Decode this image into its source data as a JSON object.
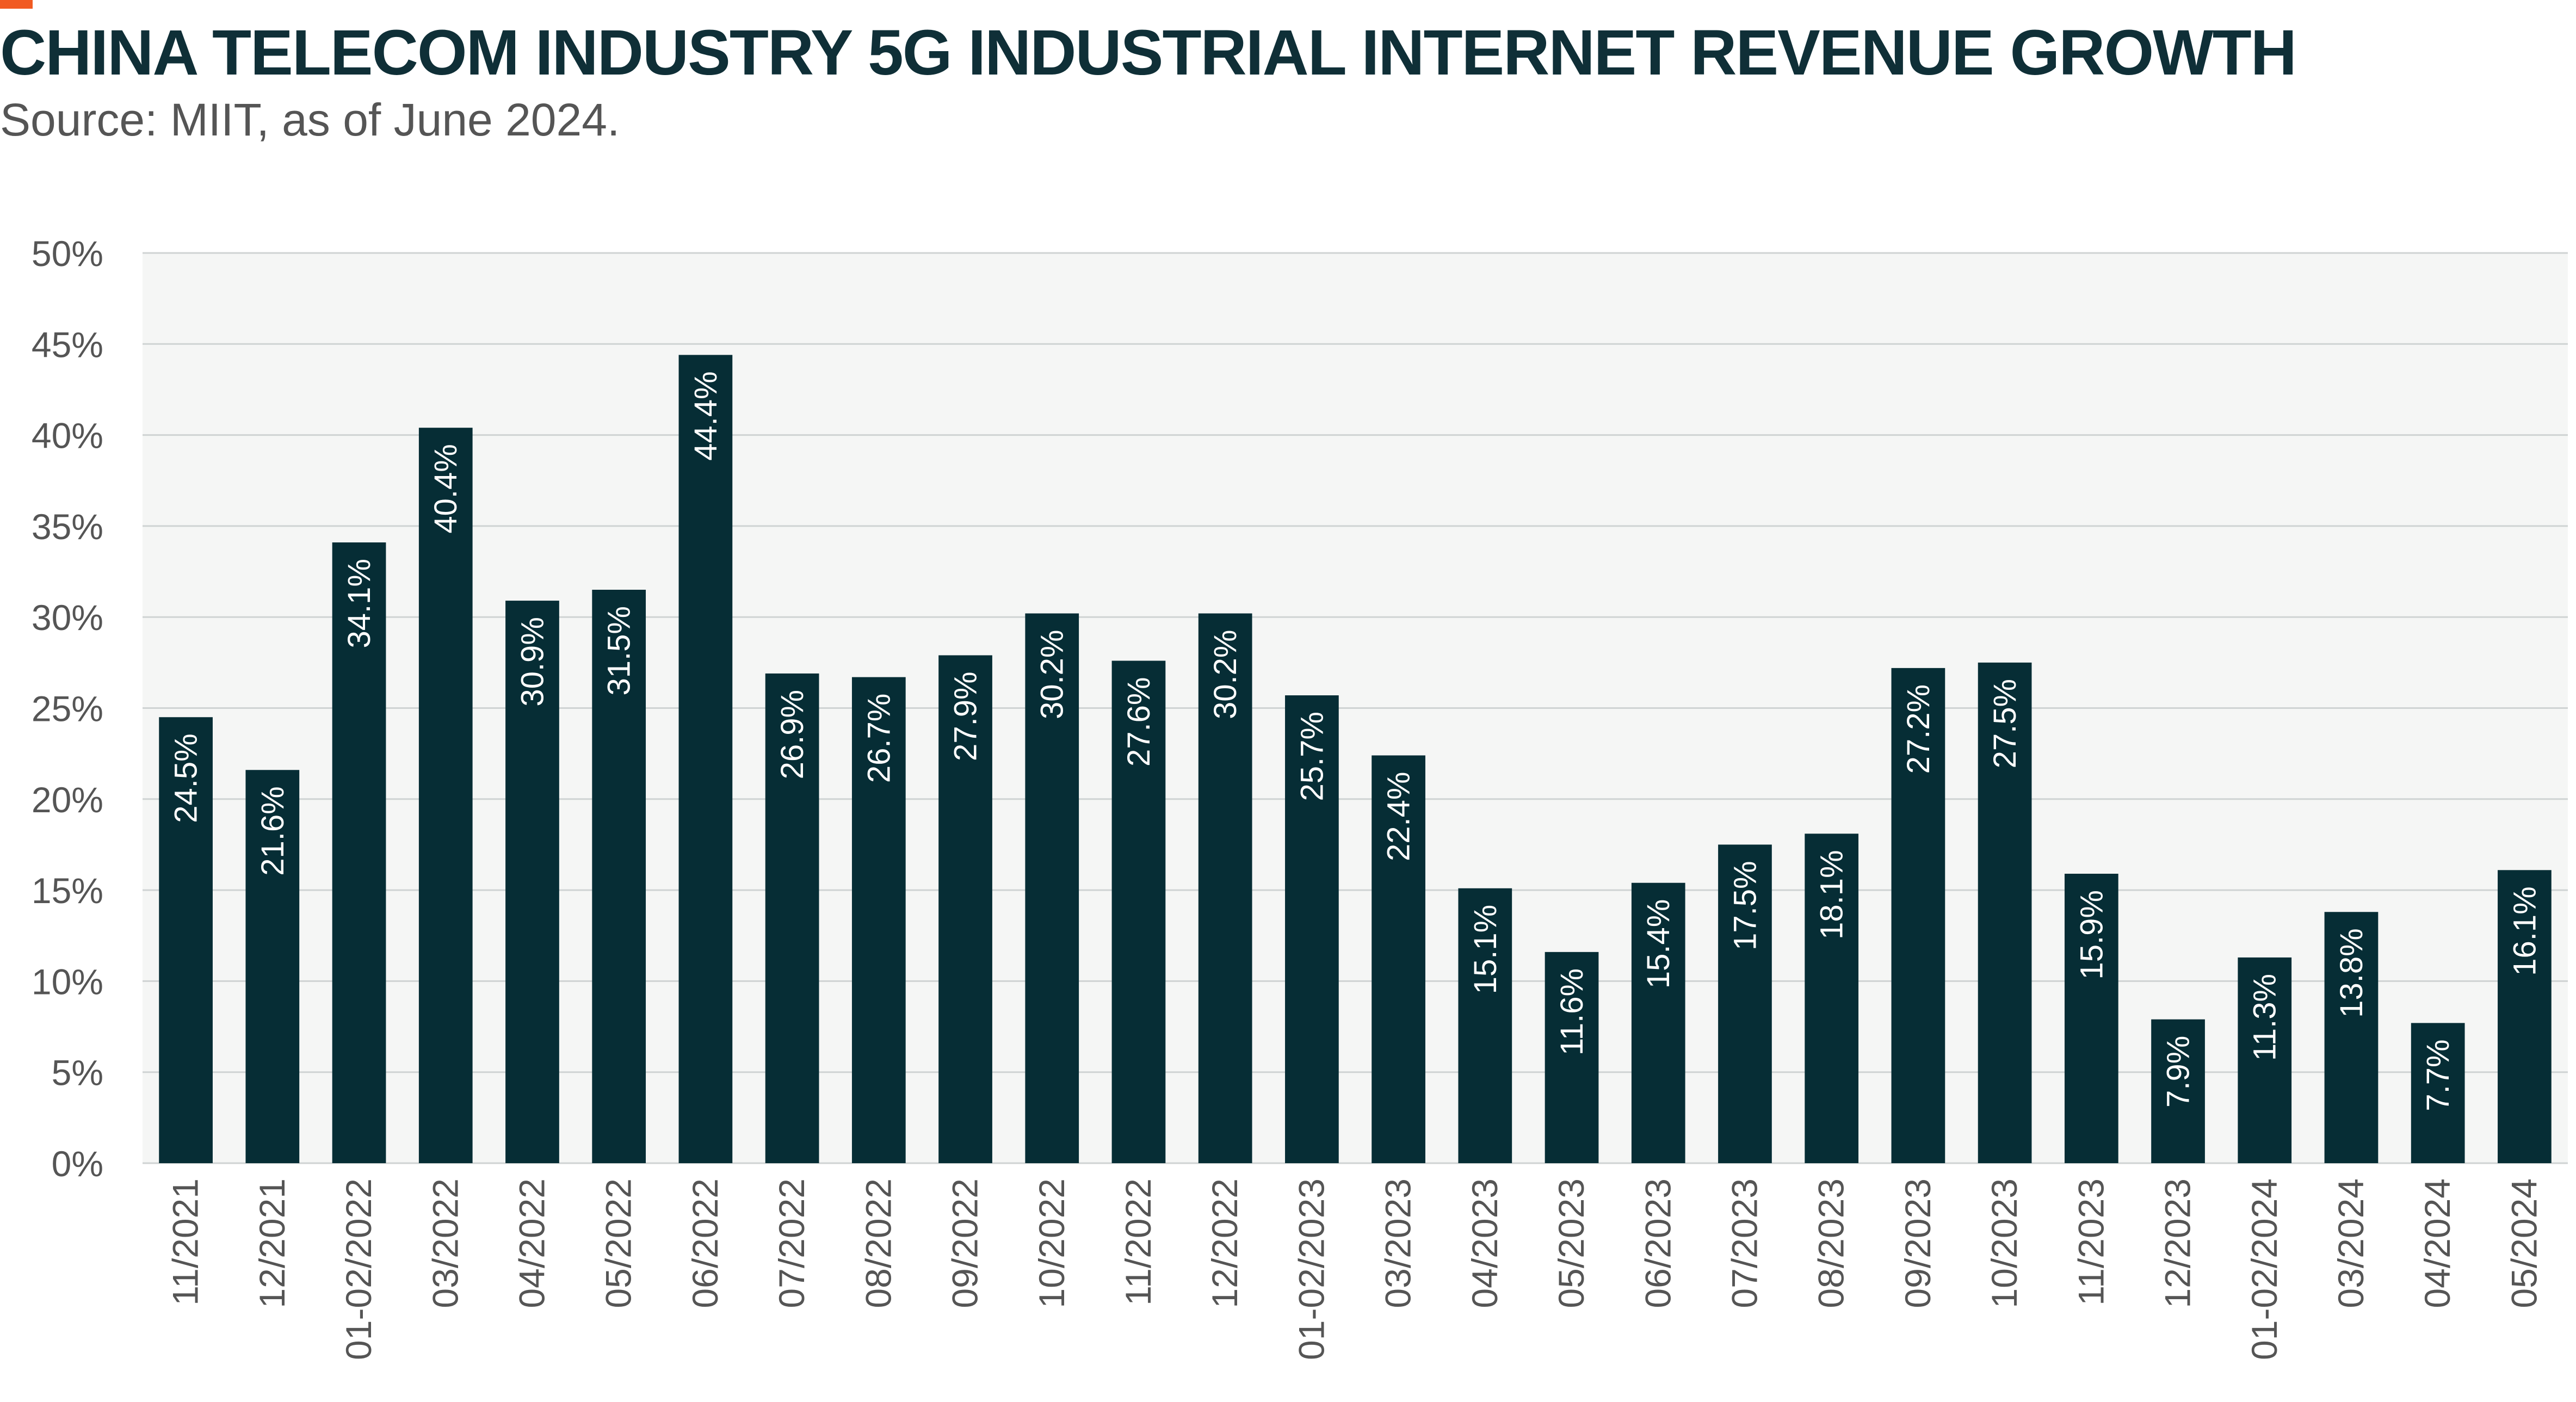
{
  "header": {
    "title": "CHINA TELECOM INDUSTRY 5G INDUSTRIAL INTERNET REVENUE GROWTH",
    "subtitle": "Source: MIIT, as of June 2024."
  },
  "colors": {
    "bar": "#062d35",
    "accent": "#f15a22",
    "plot_bg": "#f5f6f5",
    "grid": "#cfd3d3",
    "text": "#555555",
    "title": "#0f2f37"
  },
  "chart_data": {
    "type": "bar",
    "title": "CHINA TELECOM INDUSTRY 5G INDUSTRIAL INTERNET REVENUE GROWTH",
    "xlabel": "",
    "ylabel": "",
    "ylim": [
      0,
      50
    ],
    "y_ticks": [
      "0%",
      "5%",
      "10%",
      "15%",
      "20%",
      "25%",
      "30%",
      "35%",
      "40%",
      "45%",
      "50%"
    ],
    "y_tick_values": [
      0,
      5,
      10,
      15,
      20,
      25,
      30,
      35,
      40,
      45,
      50
    ],
    "grid": true,
    "categories": [
      "11/2021",
      "12/2021",
      "01-02/2022",
      "03/2022",
      "04/2022",
      "05/2022",
      "06/2022",
      "07/2022",
      "08/2022",
      "09/2022",
      "10/2022",
      "11/2022",
      "12/2022",
      "01-02/2023",
      "03/2023",
      "04/2023",
      "05/2023",
      "06/2023",
      "07/2023",
      "08/2023",
      "09/2023",
      "10/2023",
      "11/2023",
      "12/2023",
      "01-02/2024",
      "03/2024",
      "04/2024",
      "05/2024"
    ],
    "values": [
      24.5,
      21.6,
      34.1,
      40.4,
      30.9,
      31.5,
      44.4,
      26.9,
      26.7,
      27.9,
      30.2,
      27.6,
      30.2,
      25.7,
      22.4,
      15.1,
      11.6,
      15.4,
      17.5,
      18.1,
      27.2,
      27.5,
      15.9,
      7.9,
      11.3,
      13.8,
      7.7,
      16.1
    ],
    "data_labels": [
      "24.5%",
      "21.6%",
      "34.1%",
      "40.4%",
      "30.9%",
      "31.5%",
      "44.4%",
      "26.9%",
      "26.7%",
      "27.9%",
      "30.2%",
      "27.6%",
      "30.2%",
      "25.7%",
      "22.4%",
      "15.1%",
      "11.6%",
      "15.4%",
      "17.5%",
      "18.1%",
      "27.2%",
      "27.5%",
      "15.9%",
      "7.9%",
      "11.3%",
      "13.8%",
      "7.7%",
      "16.1%"
    ]
  }
}
